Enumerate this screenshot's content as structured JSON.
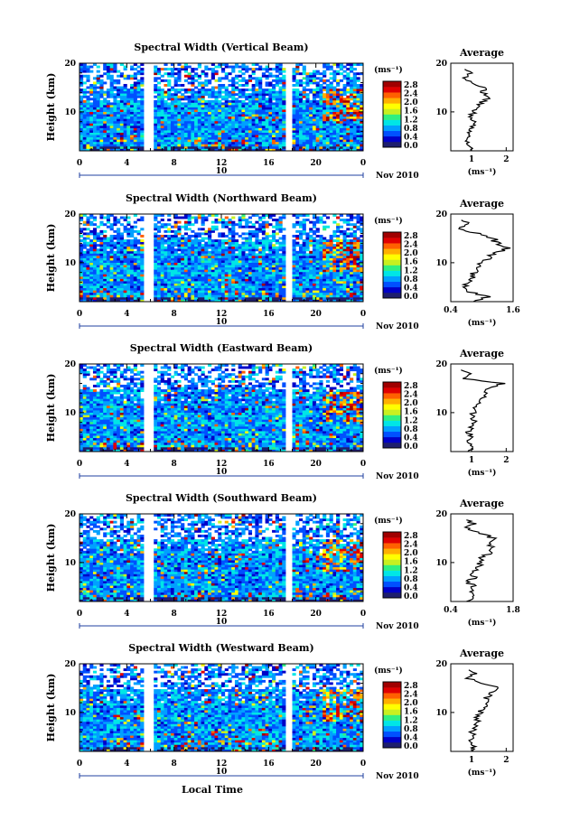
{
  "figure": {
    "xlabel": "Local Time",
    "date_label": "Nov 2010",
    "day_label": "10",
    "units_label": "(ms⁻¹)",
    "avg_title": "Average"
  },
  "colorbar": {
    "ticks": [
      "2.8",
      "2.4",
      "2.0",
      "1.6",
      "1.2",
      "0.8",
      "0.4",
      "0.0"
    ],
    "colors": [
      "#1e1e6e",
      "#0000c8",
      "#0050ff",
      "#00a0ff",
      "#00e6e6",
      "#30f080",
      "#c8f020",
      "#ffff00",
      "#ffb000",
      "#ff6000",
      "#e00000",
      "#a00000"
    ]
  },
  "chart_data": [
    {
      "type": "heatmap",
      "title": "Spectral Width (Vertical Beam)",
      "ylabel": "Height (km)",
      "xlim": [
        0,
        24
      ],
      "ylim": [
        2,
        20
      ],
      "x_ticks": [
        "0",
        "4",
        "8",
        "12",
        "16",
        "20",
        "0"
      ],
      "y_ticks": [
        "20",
        "10"
      ],
      "data_gaps_hours": [
        [
          5.5,
          6.2
        ],
        [
          17.4,
          18.0
        ]
      ],
      "colorbar_range": [
        0.0,
        3.0
      ],
      "average_profile": {
        "title": "Average",
        "xlabel": "(ms⁻¹)",
        "xlim": [
          0.4,
          2.2
        ],
        "x_ticks": [
          "1",
          "2"
        ],
        "y_ticks": [
          "20",
          "10"
        ],
        "height_km": [
          2,
          3,
          4,
          5,
          6,
          7,
          8,
          9,
          10,
          11,
          12,
          13,
          14,
          15,
          16,
          17,
          18,
          19
        ],
        "width_ms": [
          0.9,
          1.0,
          0.85,
          1.0,
          0.9,
          1.0,
          1.1,
          1.0,
          1.05,
          1.15,
          1.3,
          1.55,
          1.3,
          1.4,
          1.0,
          0.8,
          0.95,
          0.8
        ]
      }
    },
    {
      "type": "heatmap",
      "title": "Spectral Width (Northward Beam)",
      "ylabel": "Height (km)",
      "xlim": [
        0,
        24
      ],
      "ylim": [
        2,
        20
      ],
      "x_ticks": [
        "0",
        "4",
        "8",
        "12",
        "16",
        "20",
        "0"
      ],
      "y_ticks": [
        "20",
        "10"
      ],
      "data_gaps_hours": [
        [
          5.5,
          6.2
        ],
        [
          17.4,
          18.0
        ]
      ],
      "colorbar_range": [
        0.0,
        3.0
      ],
      "average_profile": {
        "title": "Average",
        "xlabel": "(ms⁻¹)",
        "xlim": [
          0.4,
          1.6
        ],
        "x_ticks": [
          "0.4",
          "1.6"
        ],
        "y_ticks": [
          "20",
          "10"
        ],
        "height_km": [
          2,
          3,
          4,
          5,
          6,
          7,
          8,
          9,
          10,
          11,
          12,
          13,
          14,
          15,
          16,
          17,
          18,
          19
        ],
        "width_ms": [
          0.75,
          1.1,
          0.8,
          0.7,
          0.75,
          0.8,
          0.85,
          0.9,
          1.0,
          1.1,
          1.3,
          1.5,
          1.3,
          1.2,
          0.9,
          0.6,
          0.8,
          0.55
        ]
      }
    },
    {
      "type": "heatmap",
      "title": "Spectral Width (Eastward Beam)",
      "ylabel": "Height (km)",
      "xlim": [
        0,
        24
      ],
      "ylim": [
        2,
        20
      ],
      "x_ticks": [
        "0",
        "4",
        "8",
        "12",
        "16",
        "20",
        "0"
      ],
      "y_ticks": [
        "20",
        "10"
      ],
      "data_gaps_hours": [
        [
          5.5,
          6.2
        ],
        [
          17.4,
          18.0
        ]
      ],
      "colorbar_range": [
        0.0,
        3.0
      ],
      "average_profile": {
        "title": "Average",
        "xlabel": "(ms⁻¹)",
        "xlim": [
          0.4,
          2.2
        ],
        "x_ticks": [
          "1",
          "2"
        ],
        "y_ticks": [
          "20",
          "10"
        ],
        "height_km": [
          2,
          3,
          4,
          5,
          6,
          7,
          8,
          9,
          10,
          11,
          12,
          13,
          14,
          15,
          16,
          17,
          18,
          19
        ],
        "width_ms": [
          0.9,
          1.0,
          0.85,
          1.0,
          0.9,
          1.0,
          1.1,
          1.0,
          1.05,
          1.1,
          1.2,
          1.3,
          1.4,
          1.5,
          1.9,
          0.8,
          1.0,
          0.7
        ]
      }
    },
    {
      "type": "heatmap",
      "title": "Spectral Width (Southward Beam)",
      "ylabel": "Height (km)",
      "xlim": [
        0,
        24
      ],
      "ylim": [
        2,
        20
      ],
      "x_ticks": [
        "0",
        "4",
        "8",
        "12",
        "16",
        "20",
        "0"
      ],
      "y_ticks": [
        "20",
        "10"
      ],
      "data_gaps_hours": [
        [
          5.5,
          6.2
        ],
        [
          17.4,
          18.0
        ]
      ],
      "colorbar_range": [
        0.0,
        3.0
      ],
      "average_profile": {
        "title": "Average",
        "xlabel": "(ms⁻¹)",
        "xlim": [
          0.4,
          1.8
        ],
        "x_ticks": [
          "0.4",
          "1.8"
        ],
        "y_ticks": [
          "20",
          "10"
        ],
        "height_km": [
          2,
          3,
          4,
          5,
          6,
          7,
          8,
          9,
          10,
          11,
          12,
          13,
          14,
          15,
          16,
          17,
          18,
          19
        ],
        "width_ms": [
          0.8,
          0.9,
          0.85,
          0.9,
          0.8,
          0.95,
          0.9,
          1.0,
          1.05,
          1.1,
          1.3,
          1.4,
          1.2,
          1.35,
          1.1,
          0.75,
          0.9,
          0.7
        ]
      }
    },
    {
      "type": "heatmap",
      "title": "Spectral Width (Westward Beam)",
      "ylabel": "Height (km)",
      "xlim": [
        0,
        24
      ],
      "ylim": [
        2,
        20
      ],
      "x_ticks": [
        "0",
        "4",
        "8",
        "12",
        "16",
        "20",
        "0"
      ],
      "y_ticks": [
        "20",
        "10"
      ],
      "data_gaps_hours": [
        [
          5.5,
          6.2
        ],
        [
          17.4,
          18.0
        ]
      ],
      "colorbar_range": [
        0.0,
        3.0
      ],
      "average_profile": {
        "title": "Average",
        "xlabel": "(ms⁻¹)",
        "xlim": [
          0.4,
          2.2
        ],
        "x_ticks": [
          "1",
          "2"
        ],
        "y_ticks": [
          "20",
          "10"
        ],
        "height_km": [
          2,
          3,
          4,
          5,
          6,
          7,
          8,
          9,
          10,
          11,
          12,
          13,
          14,
          15,
          16,
          17,
          18,
          19
        ],
        "width_ms": [
          1.0,
          1.1,
          0.95,
          1.05,
          1.0,
          1.1,
          1.2,
          1.1,
          1.25,
          1.35,
          1.5,
          1.4,
          1.6,
          1.8,
          1.3,
          0.9,
          1.1,
          0.85
        ]
      }
    }
  ]
}
